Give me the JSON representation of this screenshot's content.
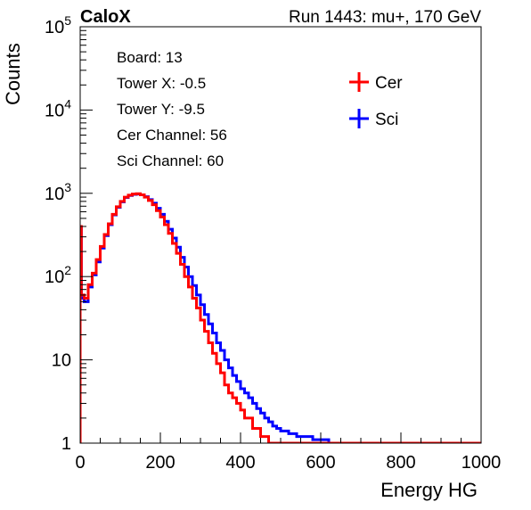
{
  "chart_data": {
    "type": "line",
    "title_left": "CaloX",
    "title_right": "Run 1443: mu+, 170 GeV",
    "xlabel": "Energy HG",
    "ylabel": "Counts",
    "xlim": [
      0,
      1000
    ],
    "ylim": [
      1,
      100000
    ],
    "yscale": "log",
    "x_ticks": [
      "0",
      "200",
      "400",
      "600",
      "800",
      "1000"
    ],
    "y_ticks": [
      {
        "base": "1",
        "exp": ""
      },
      {
        "base": "10",
        "exp": ""
      },
      {
        "base": "10",
        "exp": "2"
      },
      {
        "base": "10",
        "exp": "3"
      },
      {
        "base": "10",
        "exp": "4"
      },
      {
        "base": "10",
        "exp": "5"
      }
    ],
    "grid": false,
    "legend_position": "top-right",
    "info": {
      "board": "Board: 13",
      "tower_x": "Tower X: -0.5",
      "tower_y": "Tower Y: -9.5",
      "cer_channel": "Cer Channel: 56",
      "sci_channel": "Sci Channel: 60"
    },
    "series": [
      {
        "name": "Cer",
        "color": "#ff0000",
        "x": [
          0,
          3,
          6,
          10,
          20,
          30,
          40,
          50,
          60,
          70,
          80,
          90,
          100,
          110,
          120,
          130,
          140,
          150,
          160,
          170,
          180,
          190,
          200,
          210,
          220,
          230,
          240,
          250,
          260,
          270,
          280,
          290,
          300,
          310,
          320,
          330,
          340,
          350,
          360,
          370,
          380,
          390,
          400,
          410,
          420,
          430,
          440,
          450,
          460,
          470,
          480,
          490,
          500,
          510
        ],
        "y": [
          400,
          60,
          60,
          55,
          80,
          110,
          160,
          230,
          320,
          430,
          560,
          690,
          800,
          900,
          950,
          980,
          990,
          960,
          900,
          820,
          730,
          620,
          520,
          420,
          330,
          250,
          190,
          140,
          100,
          75,
          55,
          42,
          30,
          22,
          16,
          12,
          9,
          7,
          5,
          4,
          3.5,
          3,
          2.5,
          2,
          2,
          1.5,
          1.5,
          1.2,
          1.2,
          1,
          1,
          1,
          1,
          1
        ]
      },
      {
        "name": "Sci",
        "color": "#0000ff",
        "x": [
          0,
          3,
          6,
          10,
          20,
          30,
          40,
          50,
          60,
          70,
          80,
          90,
          100,
          110,
          120,
          130,
          140,
          150,
          160,
          170,
          180,
          190,
          200,
          210,
          220,
          230,
          240,
          250,
          260,
          270,
          280,
          290,
          300,
          310,
          320,
          330,
          340,
          350,
          360,
          370,
          380,
          390,
          400,
          410,
          420,
          430,
          440,
          450,
          460,
          470,
          480,
          490,
          500,
          520,
          540,
          560,
          580,
          600,
          620,
          640
        ],
        "y": [
          380,
          55,
          55,
          50,
          75,
          105,
          150,
          220,
          310,
          420,
          550,
          680,
          790,
          890,
          940,
          970,
          980,
          960,
          910,
          840,
          760,
          660,
          560,
          460,
          370,
          290,
          225,
          170,
          130,
          100,
          78,
          60,
          46,
          35,
          27,
          21,
          16,
          13,
          10,
          8,
          6.5,
          5.5,
          4.5,
          4,
          3.5,
          3,
          2.6,
          2.3,
          2,
          1.8,
          1.6,
          1.5,
          1.4,
          1.3,
          1.2,
          1.2,
          1.1,
          1.1,
          1,
          1
        ]
      }
    ]
  }
}
